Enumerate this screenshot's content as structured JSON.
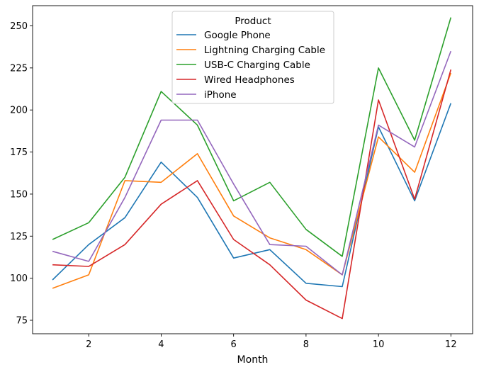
{
  "chart_data": {
    "type": "line",
    "title": "",
    "xlabel": "Month",
    "ylabel": "",
    "x": [
      1,
      2,
      3,
      4,
      5,
      6,
      7,
      8,
      9,
      10,
      11,
      12
    ],
    "xticks": [
      2,
      4,
      6,
      8,
      10,
      12
    ],
    "yticks": [
      75,
      100,
      125,
      150,
      175,
      200,
      225,
      250
    ],
    "xlim": [
      0.45,
      12.6
    ],
    "ylim": [
      67,
      262
    ],
    "grid": false,
    "legend": {
      "title": "Product",
      "placement": "top-center"
    },
    "series": [
      {
        "name": "Google Phone",
        "color": "#1f77b4",
        "values": [
          99,
          120,
          136,
          169,
          148,
          112,
          117,
          97,
          95,
          190,
          146,
          204
        ]
      },
      {
        "name": "Lightning Charging Cable",
        "color": "#ff7f0e",
        "values": [
          94,
          102,
          158,
          157,
          174,
          137,
          124,
          117,
          102,
          184,
          163,
          222
        ]
      },
      {
        "name": "USB-C Charging Cable",
        "color": "#2ca02c",
        "values": [
          123,
          133,
          160,
          211,
          191,
          146,
          157,
          129,
          113,
          225,
          182,
          255
        ]
      },
      {
        "name": "Wired Headphones",
        "color": "#d62728",
        "values": [
          108,
          107,
          120,
          144,
          158,
          123,
          108,
          87,
          76,
          206,
          147,
          224
        ]
      },
      {
        "name": "iPhone",
        "color": "#9467bd",
        "values": [
          116,
          110,
          148,
          194,
          194,
          156,
          120,
          119,
          102,
          191,
          178,
          235
        ]
      }
    ]
  }
}
